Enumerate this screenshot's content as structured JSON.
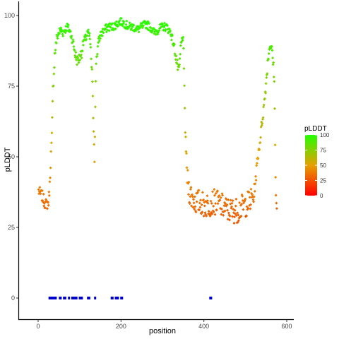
{
  "chart_data": {
    "type": "scatter",
    "title": "",
    "xlabel": "position",
    "ylabel": "pLDDT",
    "xlim": [
      -15,
      610
    ],
    "ylim": [
      -3,
      102
    ],
    "x_ticks": [
      0,
      200,
      400,
      600
    ],
    "y_ticks": [
      0,
      25,
      50,
      75,
      100
    ],
    "grid": false,
    "legend": {
      "title": "pLDDT",
      "placement": "right",
      "ticks": [
        0,
        25,
        50,
        75,
        100
      ],
      "color_low": "#ff0000",
      "color_high": "#00ff00"
    },
    "colors": {
      "domain_marker": "#0000cc",
      "axis": "#000000"
    },
    "profile": [
      [
        1,
        38
      ],
      [
        5,
        37
      ],
      [
        10,
        36
      ],
      [
        15,
        34
      ],
      [
        20,
        33
      ],
      [
        25,
        34
      ],
      [
        28,
        40
      ],
      [
        30,
        48
      ],
      [
        33,
        57
      ],
      [
        36,
        74
      ],
      [
        40,
        86
      ],
      [
        45,
        92
      ],
      [
        50,
        94
      ],
      [
        55,
        95
      ],
      [
        60,
        94
      ],
      [
        65,
        95
      ],
      [
        70,
        96
      ],
      [
        75,
        95
      ],
      [
        80,
        93
      ],
      [
        85,
        90
      ],
      [
        90,
        86
      ],
      [
        95,
        84
      ],
      [
        100,
        85
      ],
      [
        105,
        87
      ],
      [
        110,
        91
      ],
      [
        115,
        92
      ],
      [
        120,
        94
      ],
      [
        125,
        92
      ],
      [
        130,
        80
      ],
      [
        133,
        65
      ],
      [
        136,
        50
      ],
      [
        140,
        84
      ],
      [
        145,
        90
      ],
      [
        150,
        93
      ],
      [
        160,
        95
      ],
      [
        170,
        96
      ],
      [
        180,
        96
      ],
      [
        190,
        97
      ],
      [
        200,
        98
      ],
      [
        210,
        97
      ],
      [
        220,
        96
      ],
      [
        230,
        96
      ],
      [
        240,
        95
      ],
      [
        250,
        96
      ],
      [
        260,
        97
      ],
      [
        270,
        96
      ],
      [
        280,
        94
      ],
      [
        290,
        95
      ],
      [
        300,
        96
      ],
      [
        310,
        96
      ],
      [
        320,
        94
      ],
      [
        330,
        88
      ],
      [
        335,
        83
      ],
      [
        340,
        80
      ],
      [
        345,
        90
      ],
      [
        350,
        93
      ],
      [
        355,
        60
      ],
      [
        360,
        42
      ],
      [
        365,
        38
      ],
      [
        370,
        36
      ],
      [
        380,
        34
      ],
      [
        390,
        34
      ],
      [
        400,
        33
      ],
      [
        410,
        33
      ],
      [
        420,
        34
      ],
      [
        430,
        34
      ],
      [
        440,
        33
      ],
      [
        450,
        32
      ],
      [
        460,
        31
      ],
      [
        470,
        31
      ],
      [
        480,
        31
      ],
      [
        490,
        32
      ],
      [
        500,
        33
      ],
      [
        510,
        34
      ],
      [
        520,
        36
      ],
      [
        525,
        42
      ],
      [
        530,
        50
      ],
      [
        535,
        55
      ],
      [
        540,
        62
      ],
      [
        545,
        68
      ],
      [
        550,
        76
      ],
      [
        555,
        85
      ],
      [
        560,
        90
      ],
      [
        565,
        87
      ],
      [
        570,
        78
      ],
      [
        573,
        42
      ],
      [
        576,
        31
      ]
    ],
    "domain_segments": [
      [
        25,
        45
      ],
      [
        50,
        57
      ],
      [
        60,
        68
      ],
      [
        72,
        75
      ],
      [
        80,
        95
      ],
      [
        98,
        108
      ],
      [
        118,
        126
      ],
      [
        135,
        140
      ],
      [
        175,
        182
      ],
      [
        185,
        195
      ],
      [
        198,
        205
      ],
      [
        413,
        420
      ]
    ],
    "domain_y": 0
  }
}
